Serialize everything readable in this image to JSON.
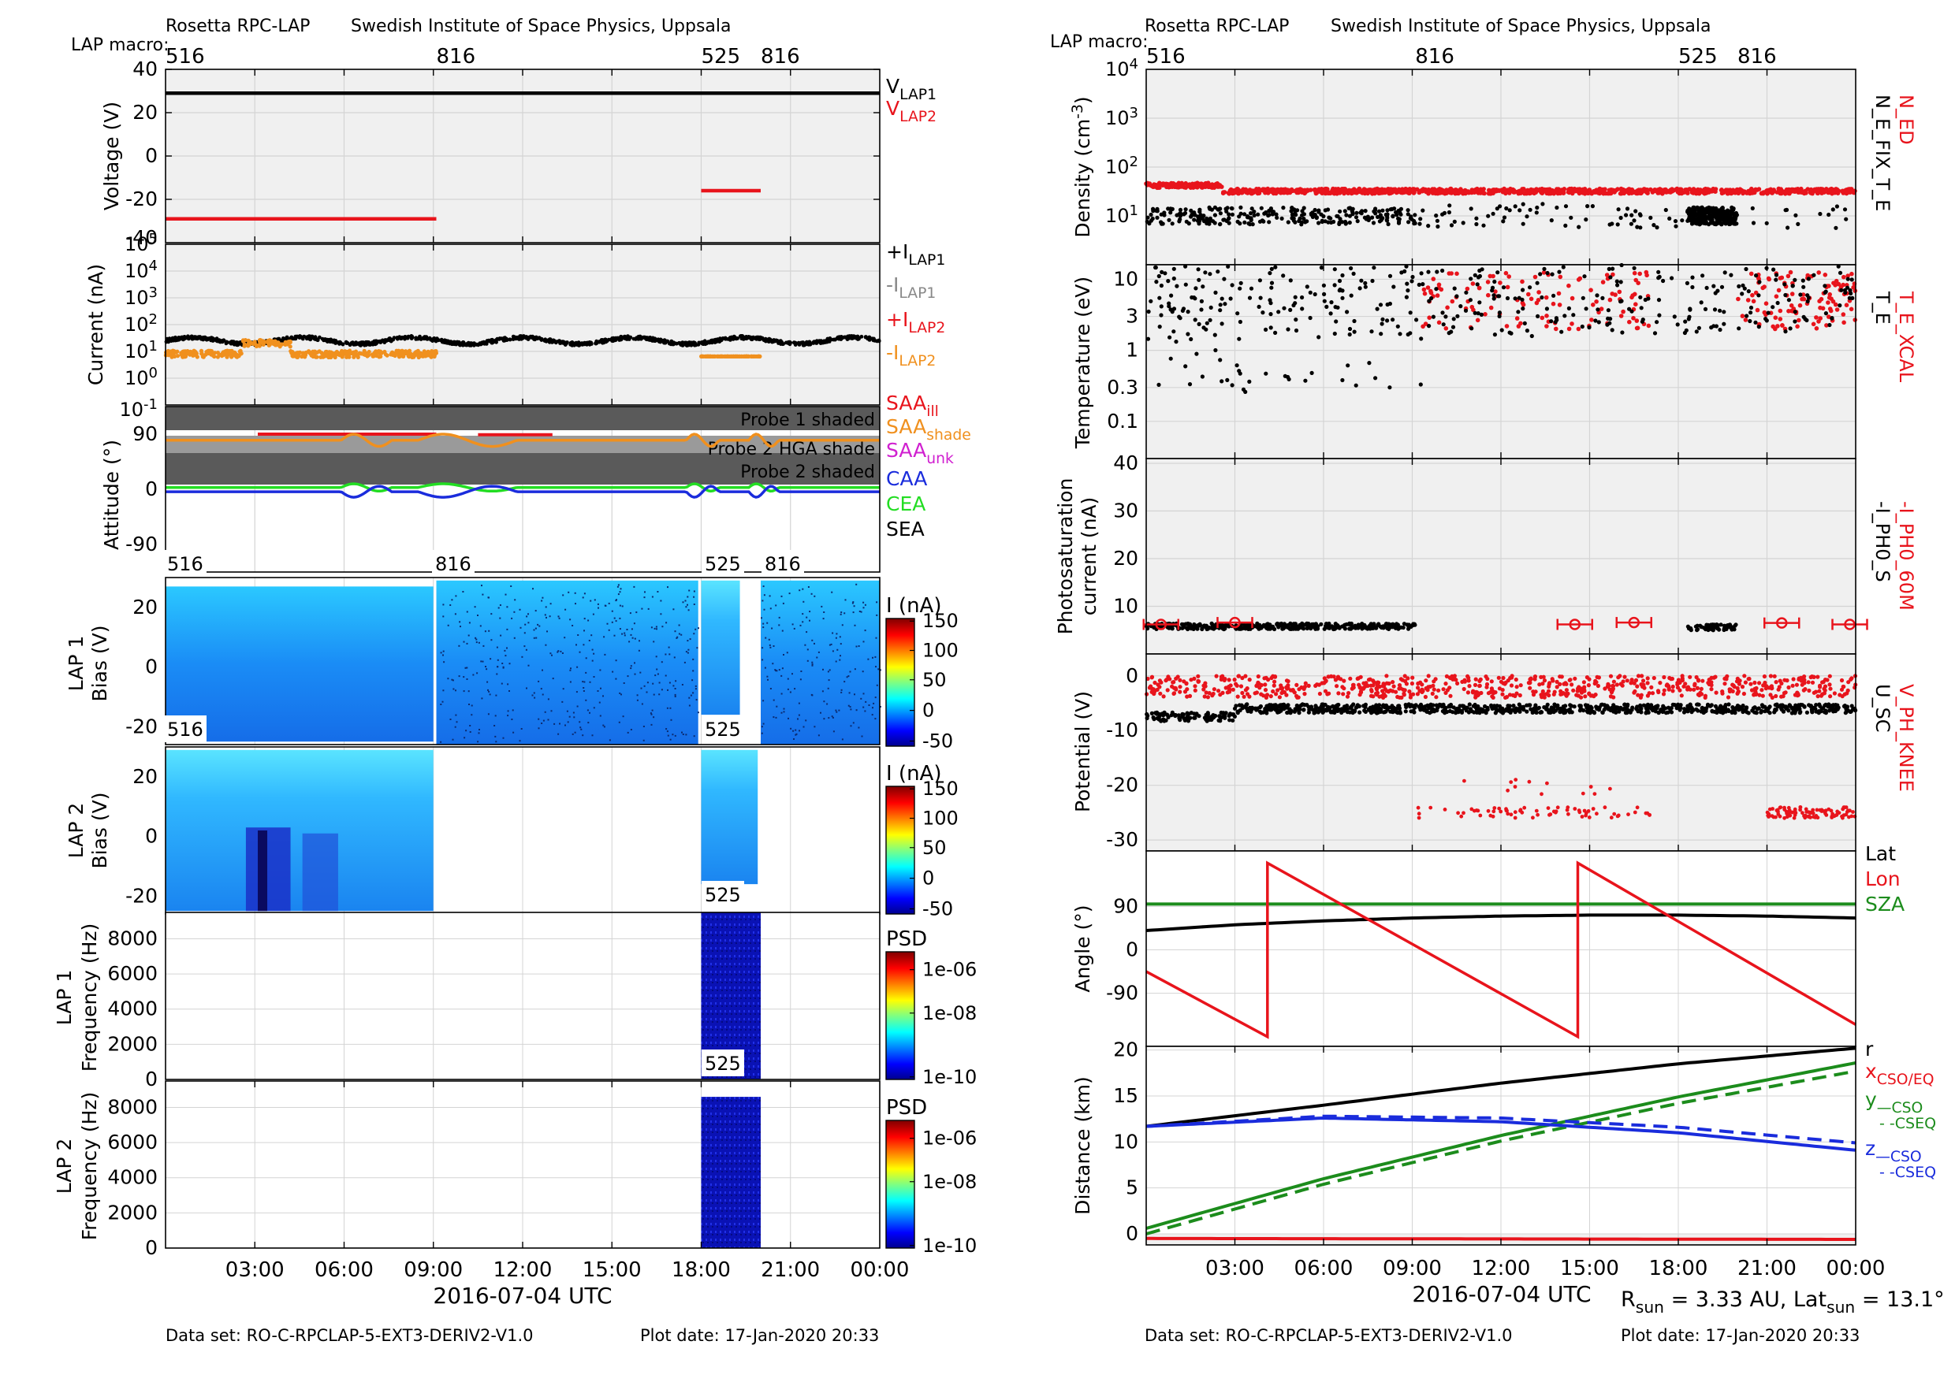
{
  "left": {
    "header": {
      "instrument": "Rosetta RPC-LAP",
      "institute": "Swedish Institute of Space Physics, Uppsala",
      "macro_label": "LAP macro:"
    },
    "macros": [
      {
        "label": "516",
        "t": 0.0
      },
      {
        "label": "816",
        "t": 9.1
      },
      {
        "label": "525",
        "t": 18.0
      },
      {
        "label": "816",
        "t": 20.0
      }
    ],
    "xlabel": "2016-07-04 UTC",
    "x_ticks": [
      "03:00",
      "06:00",
      "09:00",
      "12:00",
      "15:00",
      "18:00",
      "21:00",
      "00:00"
    ],
    "footer": {
      "dataset": "Data set: RO-C-RPCLAP-5-EXT3-DERIV2-V1.0",
      "plot_date": "Plot date: 17-Jan-2020 20:33"
    }
  },
  "right": {
    "header": {
      "instrument": "Rosetta RPC-LAP",
      "institute": "Swedish Institute of Space Physics, Uppsala",
      "macro_label": "LAP macro:"
    },
    "macros": [
      {
        "label": "516",
        "t": 0.0
      },
      {
        "label": "816",
        "t": 9.1
      },
      {
        "label": "525",
        "t": 18.0
      },
      {
        "label": "816",
        "t": 20.0
      }
    ],
    "xlabel": "2016-07-04 UTC",
    "x_ticks": [
      "03:00",
      "06:00",
      "09:00",
      "12:00",
      "15:00",
      "18:00",
      "21:00",
      "00:00"
    ],
    "footer": {
      "dataset": "Data set: RO-C-RPCLAP-5-EXT3-DERIV2-V1.0",
      "plot_date": "Plot date: 17-Jan-2020 20:33"
    },
    "rsun_note": "R_sun = 3.33 AU, Lat_sun = 13.1°"
  },
  "colors": {
    "black": "#000000",
    "red": "#e8141c",
    "orange": "#f0901e",
    "blue": "#1a2cdc",
    "green": "#1c8c1c",
    "lightgreen": "#22dd22",
    "gray": "#888888",
    "magenta": "#d020d0",
    "panel_bg": "#f0f0f0",
    "shade": "#5a5a5a"
  },
  "chart_data": [
    {
      "type": "line",
      "panel": "voltage",
      "ylabel": "Voltage (V)",
      "ylim": [
        -40,
        40
      ],
      "yticks": [
        40,
        20,
        0,
        -20,
        -40
      ],
      "series": [
        {
          "name": "V_LAP1",
          "segments": [
            {
              "t0": 0,
              "t1": 24,
              "v": 29
            }
          ]
        },
        {
          "name": "V_LAP2",
          "segments": [
            {
              "t0": 0,
              "t1": 9.1,
              "v": -29
            },
            {
              "t0": 18.0,
              "t1": 20.0,
              "v": -16
            }
          ]
        }
      ]
    },
    {
      "type": "scatter",
      "panel": "current",
      "ylabel": "Current (nA)",
      "yscale": "log",
      "ylim": [
        0.1,
        100000
      ],
      "ytick_labels": [
        "10^4",
        "10^3",
        "10^2",
        "10^1",
        "10^0",
        "10^-1"
      ],
      "series": [
        {
          "name": "+I_LAP1",
          "approx_level": 25
        },
        {
          "name": "-I_LAP1"
        },
        {
          "name": "+I_LAP2"
        },
        {
          "name": "-I_LAP2",
          "approx_level": 8
        }
      ]
    },
    {
      "type": "line",
      "panel": "attitude",
      "ylabel": "Attitude (°)",
      "ylim": [
        -135,
        135
      ],
      "yticks": [
        90,
        0,
        -90
      ],
      "shade_labels": [
        "Probe 1 shaded",
        "Probe 2 HGA shade",
        "Probe 2 shaded"
      ],
      "series": [
        {
          "name": "SAA_ill",
          "approx": 90
        },
        {
          "name": "SAA_shade",
          "approx": 80
        },
        {
          "name": "SAA_unk"
        },
        {
          "name": "CAA",
          "approx": -3
        },
        {
          "name": "CEA",
          "approx": 2
        },
        {
          "name": "SEA"
        }
      ]
    },
    {
      "type": "heatmap",
      "panel": "lap1_sweep",
      "ylabel": "LAP 1 Bias (V)",
      "yticks": [
        20,
        0,
        -20
      ],
      "colorbar_label": "I (nA)",
      "colorbar_ticks": [
        150,
        100,
        50,
        0,
        -50
      ]
    },
    {
      "type": "heatmap",
      "panel": "lap2_sweep",
      "ylabel": "LAP 2 Bias (V)",
      "yticks": [
        20,
        0,
        -20
      ],
      "colorbar_label": "I (nA)",
      "colorbar_ticks": [
        150,
        100,
        50,
        0,
        -50
      ]
    },
    {
      "type": "heatmap",
      "panel": "lap1_psd",
      "ylabel": "LAP 1 Frequency (Hz)",
      "yticks": [
        8000,
        6000,
        4000,
        2000,
        0
      ],
      "colorbar_label": "PSD",
      "colorbar_ticks": [
        "1e-06",
        "1e-08",
        "1e-10"
      ]
    },
    {
      "type": "heatmap",
      "panel": "lap2_psd",
      "ylabel": "LAP 2 Frequency (Hz)",
      "yticks": [
        8000,
        6000,
        4000,
        2000,
        0
      ],
      "colorbar_label": "PSD",
      "colorbar_ticks": [
        "1e-06",
        "1e-08",
        "1e-10"
      ]
    },
    {
      "type": "scatter",
      "panel": "density",
      "ylabel": "Density (cm^-3)",
      "yscale": "log",
      "ylim": [
        1,
        10000
      ],
      "ytick_labels": [
        "10^4",
        "10^3",
        "10^2",
        "10^1"
      ],
      "series": [
        {
          "name": "N_ED",
          "approx_level": 32
        },
        {
          "name": "N_E_FIX_T_E",
          "approx_level": 10
        }
      ]
    },
    {
      "type": "scatter",
      "panel": "temperature",
      "ylabel": "Temperature (eV)",
      "yscale": "log",
      "ylim": [
        0.03,
        16
      ],
      "yticks": [
        10,
        3,
        1,
        0.3,
        0.1
      ],
      "series": [
        {
          "name": "T_E_XCAL"
        },
        {
          "name": "T_E"
        }
      ]
    },
    {
      "type": "scatter",
      "panel": "photosaturation",
      "ylabel": "Photosaturation current (nA)",
      "ylim": [
        0,
        40
      ],
      "yticks": [
        40,
        30,
        20,
        10
      ],
      "series": [
        {
          "name": "-I_PH0_60M",
          "points": [
            [
              0.5,
              6.2
            ],
            [
              3.0,
              6.6
            ],
            [
              14.5,
              6.2
            ],
            [
              16.5,
              6.6
            ],
            [
              21.5,
              6.5
            ],
            [
              23.8,
              6.2
            ]
          ]
        },
        {
          "name": "-I_PH0_S",
          "approx_level": 5.8
        }
      ]
    },
    {
      "type": "scatter",
      "panel": "potential",
      "ylabel": "Potential (V)",
      "ylim": [
        -32,
        4
      ],
      "yticks": [
        0,
        -10,
        -20,
        -30
      ],
      "series": [
        {
          "name": "V_PH_KNEE",
          "approx_level": -2
        },
        {
          "name": "U_SC",
          "approx_level": -6
        }
      ]
    },
    {
      "type": "line",
      "panel": "angle",
      "ylabel": "Angle (°)",
      "ylim": [
        -190,
        200
      ],
      "yticks": [
        90,
        0,
        -90
      ],
      "series": [
        {
          "name": "Lat",
          "x": [
            0,
            6,
            12,
            18,
            24
          ],
          "y": [
            40,
            60,
            70,
            72,
            66
          ]
        },
        {
          "name": "Lon",
          "x": [
            0,
            4.1,
            4.1,
            14.6,
            14.6,
            24
          ],
          "y": [
            -45,
            -180,
            180,
            -180,
            180,
            -155
          ]
        },
        {
          "name": "SZA",
          "x": [
            0,
            24
          ],
          "y": [
            95,
            95
          ]
        }
      ]
    },
    {
      "type": "line",
      "panel": "distance",
      "ylabel": "Distance (km)",
      "ylim": [
        -1,
        20
      ],
      "yticks": [
        20,
        15,
        10,
        5,
        0
      ],
      "series": [
        {
          "name": "r",
          "x": [
            0,
            6,
            12,
            18,
            24
          ],
          "y": [
            11.7,
            14.0,
            16.4,
            18.5,
            20.2
          ]
        },
        {
          "name": "x_CSO/EQ",
          "x": [
            0,
            24
          ],
          "y": [
            -0.5,
            -0.6
          ]
        },
        {
          "name": "y_CSO",
          "x": [
            0,
            6,
            12,
            18,
            24
          ],
          "y": [
            0.6,
            6.0,
            10.7,
            14.9,
            18.6
          ]
        },
        {
          "name": "y_CSEQ",
          "x": [
            0,
            6,
            12,
            18,
            24
          ],
          "y": [
            0.0,
            5.4,
            10.1,
            14.2,
            17.7
          ]
        },
        {
          "name": "z_CSO",
          "x": [
            0,
            6,
            12,
            18,
            24
          ],
          "y": [
            11.7,
            12.6,
            12.2,
            11.0,
            9.1
          ]
        },
        {
          "name": "z_CSEQ",
          "x": [
            0,
            6,
            12,
            18,
            24
          ],
          "y": [
            11.7,
            12.8,
            12.6,
            11.6,
            9.9
          ]
        }
      ]
    }
  ]
}
